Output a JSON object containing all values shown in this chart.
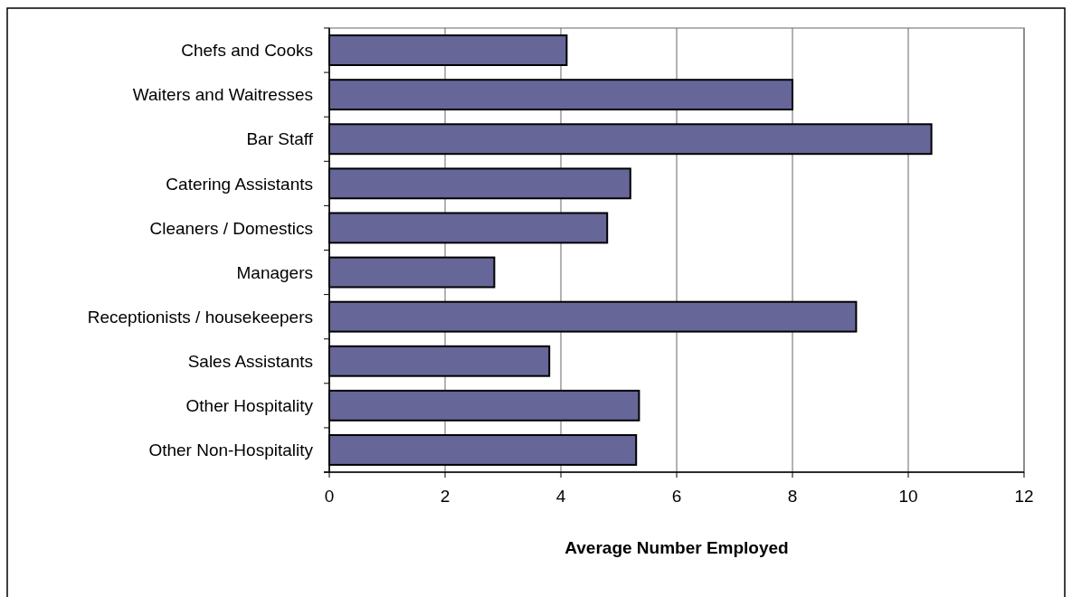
{
  "chart_data": {
    "type": "bar",
    "orientation": "horizontal",
    "xlabel": "Average Number Employed",
    "categories": [
      "Chefs and Cooks",
      "Waiters and Waitresses",
      "Bar Staff",
      "Catering Assistants",
      "Cleaners / Domestics",
      "Managers",
      "Receptionists / housekeepers",
      "Sales Assistants",
      "Other Hospitality",
      "Other Non-Hospitality"
    ],
    "values": [
      4.1,
      8.0,
      10.4,
      5.2,
      4.8,
      2.85,
      9.1,
      3.8,
      5.35,
      5.3
    ],
    "color": "#666699",
    "xlim": [
      0,
      12
    ],
    "xticks": [
      0,
      2,
      4,
      6,
      8,
      10,
      12
    ],
    "grid": "x"
  }
}
